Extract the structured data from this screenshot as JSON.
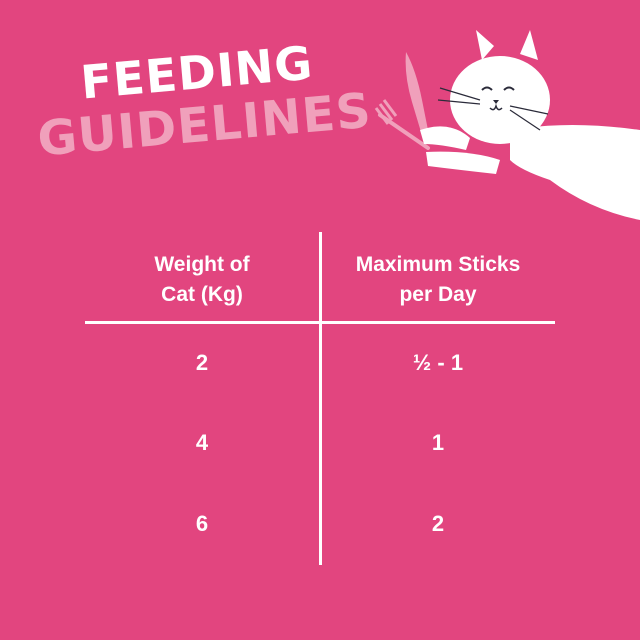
{
  "title": {
    "line1": "FEEDING",
    "line2": "GUIDELINES"
  },
  "colors": {
    "background": "#e2457f",
    "title_primary": "#ffffff",
    "title_secondary": "#f0a0bb",
    "cutlery": "#f0a0bb"
  },
  "illustration": "cat-holding-knife-and-fork",
  "table": {
    "headers": [
      {
        "line1": "Weight of",
        "line2": "Cat (Kg)"
      },
      {
        "line1": "Maximum Sticks",
        "line2": "per Day"
      }
    ],
    "rows": [
      {
        "weight": "2",
        "sticks": "½ - 1"
      },
      {
        "weight": "4",
        "sticks": "1"
      },
      {
        "weight": "6",
        "sticks": "2"
      }
    ]
  }
}
